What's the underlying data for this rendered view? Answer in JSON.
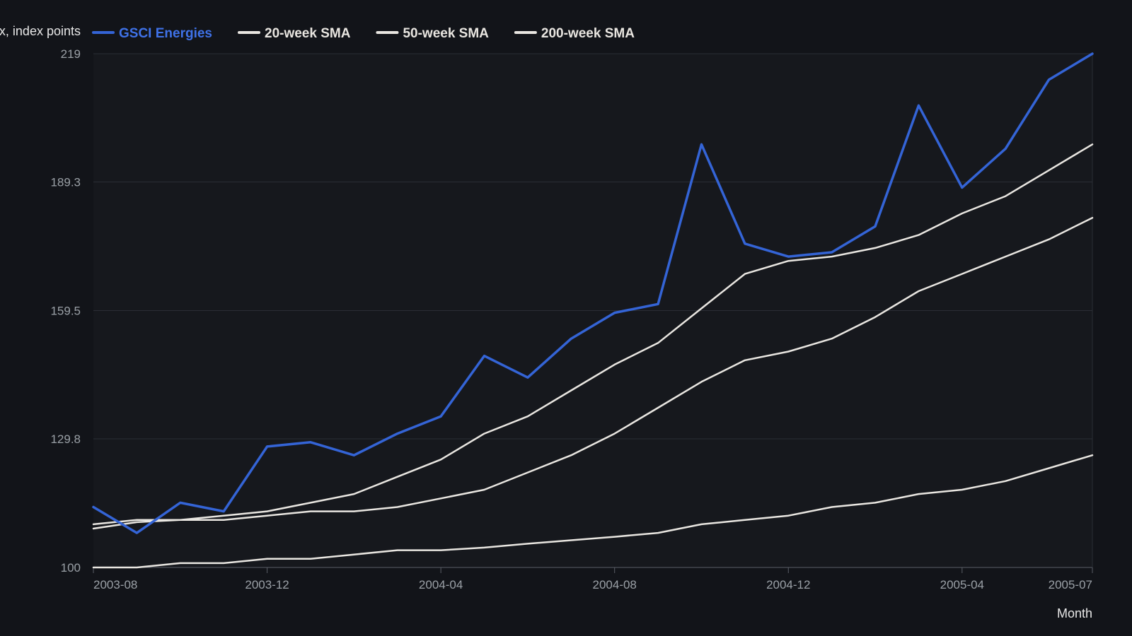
{
  "chart_data": {
    "type": "line",
    "ylabel": "Index, index points",
    "xlabel": "Month",
    "ylim": [
      100,
      219
    ],
    "y_ticks": [
      "100",
      "129.8",
      "159.5",
      "189.3",
      "219"
    ],
    "x_tick_labels": [
      "2003-08",
      "2003-12",
      "2004-04",
      "2004-08",
      "2004-12",
      "2005-04",
      "2005-07"
    ],
    "grid": true,
    "legend_position": "top-left",
    "x": [
      "2003-08",
      "2003-09",
      "2003-10",
      "2003-11",
      "2003-12",
      "2004-01",
      "2004-02",
      "2004-03",
      "2004-04",
      "2004-05",
      "2004-06",
      "2004-07",
      "2004-08",
      "2004-09",
      "2004-10",
      "2004-11",
      "2004-12",
      "2005-01",
      "2005-02",
      "2005-03",
      "2005-04",
      "2005-05",
      "2005-06",
      "2005-07"
    ],
    "series": [
      {
        "name": "GSCI Energies",
        "color": "#3464d6",
        "values": [
          114,
          108,
          115,
          113,
          128,
          129,
          126,
          131,
          135,
          149,
          144,
          153,
          159,
          161,
          198,
          175,
          172,
          173,
          179,
          207,
          188,
          197,
          213,
          219
        ]
      },
      {
        "name": "20-week SMA",
        "color": "#e9e6e1",
        "values": [
          110,
          111,
          111,
          112,
          113,
          115,
          117,
          121,
          125,
          131,
          135,
          141,
          147,
          152,
          160,
          168,
          171,
          172,
          174,
          177,
          182,
          186,
          192,
          198
        ]
      },
      {
        "name": "50-week SMA",
        "color": "#e9e6e1",
        "values": [
          109,
          110.5,
          111,
          111,
          112,
          113,
          113,
          114,
          116,
          118,
          122,
          126,
          131,
          137,
          143,
          148,
          150,
          153,
          158,
          164,
          168,
          172,
          176,
          181
        ]
      },
      {
        "name": "200-week SMA",
        "color": "#e9e6e1",
        "values": [
          100,
          100,
          101,
          101,
          102,
          102,
          103,
          104,
          104,
          104.6,
          105.5,
          106.3,
          107.1,
          108,
          110,
          111,
          112,
          114,
          115,
          117,
          118,
          120,
          123,
          126
        ]
      }
    ]
  }
}
